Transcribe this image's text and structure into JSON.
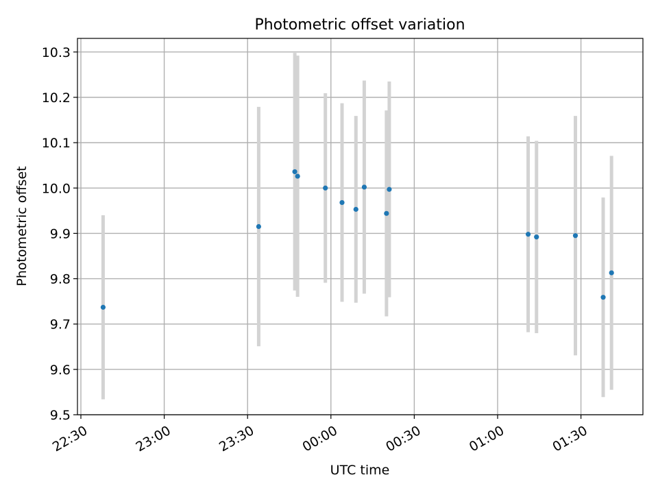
{
  "chart_data": {
    "type": "scatter",
    "title": "Photometric offset variation",
    "xlabel": "UTC time",
    "ylabel": "Photometric offset",
    "x_axis_type": "time",
    "x_tick_labels": [
      "22:30",
      "23:00",
      "23:30",
      "00:00",
      "00:30",
      "01:00",
      "01:30"
    ],
    "y_tick_labels": [
      "9.5",
      "9.6",
      "9.7",
      "9.8",
      "9.9",
      "10.0",
      "10.1",
      "10.2",
      "10.3"
    ],
    "ylim": [
      9.5,
      10.33
    ],
    "grid": true,
    "colors": {
      "point": "#1f77b4",
      "errorbar": "#d3d3d3",
      "grid": "#b0b0b0"
    },
    "points": [
      {
        "x": "22:38",
        "y": 9.737,
        "err": 0.203
      },
      {
        "x": "23:34",
        "y": 9.915,
        "err": 0.264
      },
      {
        "x": "23:47",
        "y": 10.036,
        "err": 0.262
      },
      {
        "x": "23:48",
        "y": 10.026,
        "err": 0.266
      },
      {
        "x": "23:58",
        "y": 10.0,
        "err": 0.209
      },
      {
        "x": "00:04",
        "y": 9.968,
        "err": 0.219
      },
      {
        "x": "00:09",
        "y": 9.953,
        "err": 0.206
      },
      {
        "x": "00:12",
        "y": 10.002,
        "err": 0.235
      },
      {
        "x": "00:20",
        "y": 9.944,
        "err": 0.227
      },
      {
        "x": "00:21",
        "y": 9.997,
        "err": 0.238
      },
      {
        "x": "01:11",
        "y": 9.898,
        "err": 0.216
      },
      {
        "x": "01:14",
        "y": 9.892,
        "err": 0.212
      },
      {
        "x": "01:28",
        "y": 9.895,
        "err": 0.264
      },
      {
        "x": "01:38",
        "y": 9.759,
        "err": 0.22
      },
      {
        "x": "01:41",
        "y": 9.813,
        "err": 0.258
      }
    ]
  }
}
